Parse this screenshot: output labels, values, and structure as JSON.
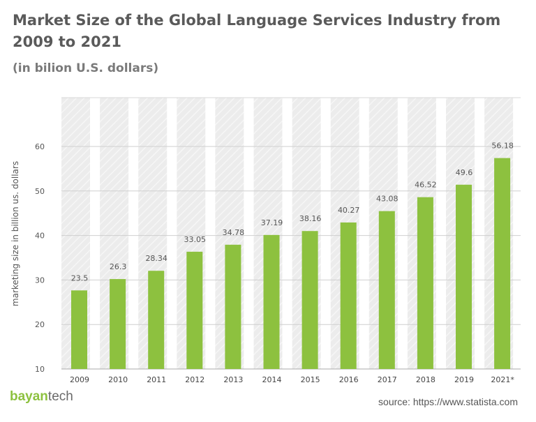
{
  "chart_data": {
    "type": "bar",
    "title": "Market Size of the Global Language Services Industry from 2009 to 2021",
    "subtitle": "(in bilion U.S. dollars)",
    "ylabel": "marketing size  in billion us. dollars",
    "xlabel": "",
    "categories": [
      "2009",
      "2010",
      "2011",
      "2012",
      "2013",
      "2014",
      "2015",
      "2016",
      "2017",
      "2018",
      "2019",
      "2021*"
    ],
    "values": [
      23.5,
      26.3,
      28.34,
      33.05,
      34.78,
      37.19,
      38.16,
      40.27,
      43.08,
      46.52,
      49.6,
      56.18
    ],
    "data_labels": [
      "23.5",
      "26.3",
      "28.34",
      "33.05",
      "34.78",
      "37.19",
      "38.16",
      "40.27",
      "43.08",
      "46.52",
      "49.6",
      "56.18"
    ],
    "yticks": [
      10,
      20,
      30,
      40,
      50,
      60
    ],
    "ylim": [
      10,
      60
    ],
    "grid": true,
    "legend": "none",
    "bar_color": "#8dc13f"
  },
  "footer": {
    "logo_part1": "bayan",
    "logo_part2": "tech",
    "source": "source: https://www.statista.com"
  }
}
